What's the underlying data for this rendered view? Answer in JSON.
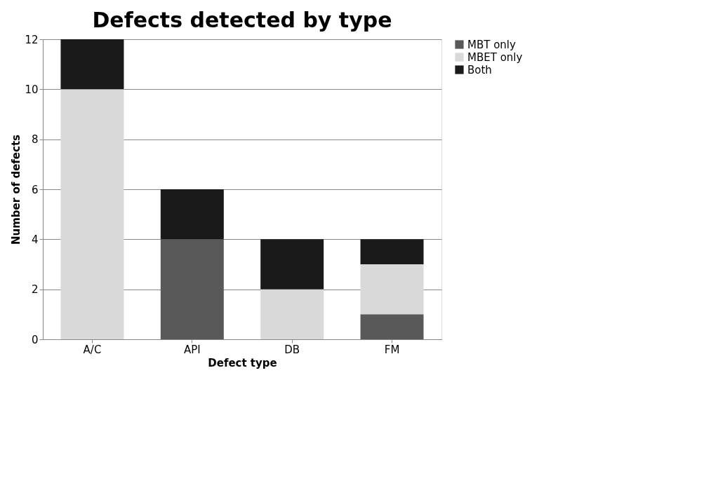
{
  "chart_data": {
    "type": "bar",
    "title": "Defects detected by type",
    "xlabel": "Defect type",
    "ylabel": "Number of defects",
    "categories": [
      "A/C",
      "API",
      "DB",
      "FM"
    ],
    "stacked": true,
    "series": [
      {
        "name": "MBT only",
        "color": "#595959",
        "values": [
          0,
          4,
          0,
          1
        ]
      },
      {
        "name": "MBET only",
        "color": "#d9d9d9",
        "values": [
          10,
          0,
          2,
          2
        ]
      },
      {
        "name": "Both",
        "color": "#1a1a1a",
        "values": [
          2,
          2,
          2,
          1
        ]
      }
    ],
    "ylim": [
      0,
      12
    ],
    "yticks": [
      0,
      2,
      4,
      6,
      8,
      10,
      12
    ],
    "grid": "y",
    "legend": "right"
  }
}
